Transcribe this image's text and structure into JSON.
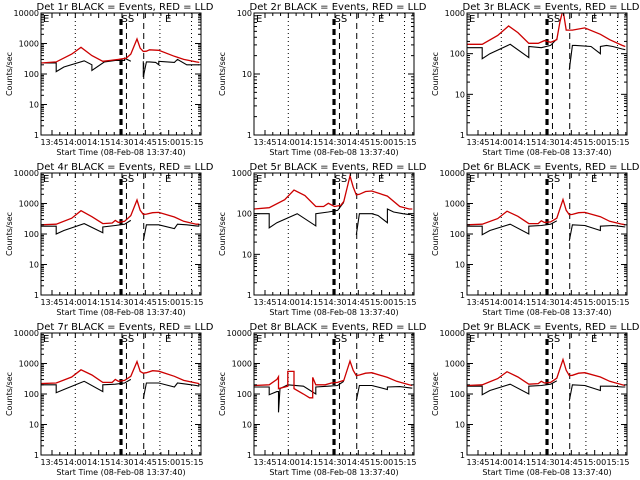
{
  "chart_data": [
    {
      "type": "line",
      "title": "Det 1r BLACK = Events, RED = LLD",
      "xlabel": "Start Time (08-Feb-08 13:37:40)",
      "ylabel": "Counts/sec",
      "yscale": "log",
      "ylim": [
        1,
        10000
      ],
      "ytick_labels": [
        "1",
        "10",
        "100",
        "1000",
        "10000"
      ],
      "xtick_labels": [
        "13:45",
        "14:00",
        "14:15",
        "14:30",
        "14:45",
        "15:00",
        "15:15"
      ],
      "xlim_minutes": [
        0,
        102
      ],
      "markers": [
        "E",
        "SS",
        "E"
      ],
      "series": [
        {
          "name": "Events",
          "color": "#000000",
          "x": [
            0,
            10,
            10,
            15,
            28,
            33,
            33,
            41,
            41,
            48,
            48,
            54,
            54,
            58,
            58,
            66,
            66,
            68,
            70,
            74,
            76,
            76,
            86,
            88,
            94,
            94,
            100,
            102
          ],
          "y": [
            230,
            230,
            120,
            170,
            270,
            200,
            130,
            250,
            250,
            280,
            280,
            280,
            330,
            260,
            0,
            260,
            80,
            250,
            250,
            240,
            200,
            260,
            240,
            300,
            200,
            200,
            200,
            200
          ]
        },
        {
          "name": "LLD",
          "color": "#cc0000",
          "x": [
            0,
            10,
            20,
            26,
            33,
            40,
            45,
            50,
            55,
            58,
            62,
            64,
            66,
            68,
            70,
            76,
            86,
            92,
            100,
            102
          ],
          "y": [
            230,
            250,
            450,
            750,
            400,
            260,
            280,
            300,
            330,
            450,
            1400,
            700,
            550,
            560,
            620,
            600,
            380,
            300,
            250,
            240
          ]
        }
      ]
    },
    {
      "type": "line",
      "title": "Det 2r BLACK = Events, RED = LLD",
      "xlabel": "Start Time (08-Feb-08 13:37:40)",
      "ylabel": "Counts/sec",
      "yscale": "log",
      "ylim": [
        1,
        100
      ],
      "ytick_labels": [
        "1",
        "10",
        "100"
      ],
      "xtick_labels": [
        "13:45",
        "14:00",
        "14:15",
        "14:30",
        "14:45",
        "15:00",
        "15:15"
      ],
      "xlim_minutes": [
        0,
        102
      ],
      "markers": [
        "E",
        "SS",
        "E"
      ],
      "series": []
    },
    {
      "type": "line",
      "title": "Det 3r BLACK = Events, RED = LLD",
      "xlabel": "Start Time (08-Feb-08 13:37:40)",
      "ylabel": "Counts/sec",
      "yscale": "log",
      "ylim": [
        1,
        1000
      ],
      "ytick_labels": [
        "1",
        "10",
        "100",
        "1000"
      ],
      "xtick_labels": [
        "13:45",
        "14:00",
        "14:15",
        "14:30",
        "14:45",
        "15:00",
        "15:15"
      ],
      "xlim_minutes": [
        0,
        102
      ],
      "markers": [
        "E",
        "SS",
        "E"
      ],
      "series": [
        {
          "name": "Events",
          "color": "#000000",
          "x": [
            0,
            10,
            10,
            15,
            28,
            40,
            40,
            48,
            48,
            54,
            54,
            58,
            58,
            66,
            66,
            68,
            70,
            80,
            86,
            86,
            90,
            94,
            100,
            102
          ],
          "y": [
            140,
            140,
            75,
            100,
            170,
            80,
            150,
            140,
            140,
            160,
            160,
            230,
            0,
            0,
            40,
            160,
            160,
            150,
            100,
            150,
            160,
            150,
            130,
            125
          ]
        },
        {
          "name": "LLD",
          "color": "#cc0000",
          "x": [
            0,
            10,
            20,
            27,
            33,
            40,
            46,
            50,
            54,
            58,
            60,
            62,
            64,
            68,
            76,
            86,
            92,
            100,
            102
          ],
          "y": [
            170,
            170,
            280,
            480,
            330,
            180,
            180,
            210,
            190,
            220,
            600,
            1200,
            380,
            380,
            430,
            300,
            220,
            160,
            150
          ]
        }
      ]
    },
    {
      "type": "line",
      "title": "Det 4r BLACK = Events, RED = LLD",
      "xlabel": "Start Time (08-Feb-08 13:37:40)",
      "ylabel": "Counts/sec",
      "yscale": "log",
      "ylim": [
        1,
        10000
      ],
      "ytick_labels": [
        "1",
        "10",
        "100",
        "1000",
        "10000"
      ],
      "xtick_labels": [
        "13:45",
        "14:00",
        "14:15",
        "14:30",
        "14:45",
        "15:00",
        "15:15"
      ],
      "xlim_minutes": [
        0,
        102
      ],
      "markers": [
        "E",
        "SS",
        "E"
      ],
      "series": [
        {
          "name": "Events",
          "color": "#000000",
          "x": [
            0,
            10,
            10,
            15,
            28,
            40,
            40,
            48,
            48,
            54,
            54,
            58,
            58,
            66,
            66,
            68,
            76,
            86,
            88,
            94,
            94,
            100,
            102
          ],
          "y": [
            180,
            180,
            100,
            130,
            220,
            110,
            170,
            190,
            190,
            210,
            210,
            280,
            0,
            0,
            60,
            200,
            200,
            150,
            210,
            200,
            200,
            185,
            180
          ]
        },
        {
          "name": "LLD",
          "color": "#cc0000",
          "x": [
            0,
            10,
            20,
            26,
            33,
            40,
            46,
            48,
            50,
            54,
            58,
            62,
            64,
            66,
            68,
            72,
            76,
            86,
            92,
            100,
            102
          ],
          "y": [
            200,
            210,
            330,
            580,
            370,
            220,
            230,
            280,
            240,
            260,
            400,
            1300,
            600,
            440,
            450,
            500,
            510,
            360,
            260,
            210,
            210
          ]
        }
      ]
    },
    {
      "type": "line",
      "title": "Det 5r BLACK = Events, RED = LLD",
      "xlabel": "Start Time (08-Feb-08 13:37:40)",
      "ylabel": "Counts/sec",
      "yscale": "log",
      "ylim": [
        1,
        1000
      ],
      "ytick_labels": [
        "1",
        "10",
        "100",
        "1000"
      ],
      "xtick_labels": [
        "13:45",
        "14:00",
        "14:15",
        "14:30",
        "14:45",
        "15:00",
        "15:15"
      ],
      "xlim_minutes": [
        0,
        102
      ],
      "markers": [
        "E",
        "SS",
        "E"
      ],
      "series": [
        {
          "name": "Events",
          "color": "#000000",
          "x": [
            0,
            10,
            10,
            15,
            28,
            40,
            40,
            48,
            48,
            54,
            54,
            58,
            58,
            66,
            66,
            68,
            76,
            80,
            86,
            86,
            90,
            96,
            100,
            102
          ],
          "y": [
            100,
            100,
            45,
            60,
            100,
            50,
            100,
            110,
            110,
            120,
            120,
            190,
            0,
            0,
            30,
            100,
            100,
            90,
            60,
            130,
            110,
            100,
            95,
            100
          ]
        },
        {
          "name": "LLD",
          "color": "#cc0000",
          "x": [
            0,
            10,
            20,
            26,
            33,
            40,
            45,
            48,
            52,
            56,
            58,
            62,
            64,
            66,
            68,
            72,
            76,
            86,
            94,
            100,
            102
          ],
          "y": [
            130,
            140,
            220,
            380,
            280,
            150,
            150,
            180,
            150,
            160,
            200,
            850,
            450,
            290,
            300,
            350,
            360,
            270,
            150,
            130,
            130
          ]
        }
      ]
    },
    {
      "type": "line",
      "title": "Det 6r BLACK = Events, RED = LLD",
      "xlabel": "Start Time (08-Feb-08 13:37:40)",
      "ylabel": "Counts/sec",
      "yscale": "log",
      "ylim": [
        1,
        10000
      ],
      "ytick_labels": [
        "1",
        "10",
        "100",
        "1000",
        "10000"
      ],
      "xtick_labels": [
        "13:45",
        "14:00",
        "14:15",
        "14:30",
        "14:45",
        "15:00",
        "15:15"
      ],
      "xlim_minutes": [
        0,
        102
      ],
      "markers": [
        "E",
        "SS",
        "E"
      ],
      "series": [
        {
          "name": "Events",
          "color": "#000000",
          "x": [
            0,
            10,
            10,
            15,
            28,
            40,
            40,
            48,
            48,
            54,
            54,
            58,
            58,
            66,
            66,
            68,
            76,
            86,
            86,
            94,
            100,
            102
          ],
          "y": [
            180,
            180,
            95,
            130,
            210,
            100,
            180,
            190,
            190,
            210,
            210,
            270,
            0,
            0,
            60,
            200,
            190,
            130,
            180,
            190,
            175,
            170
          ]
        },
        {
          "name": "LLD",
          "color": "#cc0000",
          "x": [
            0,
            10,
            20,
            26,
            33,
            40,
            46,
            48,
            50,
            54,
            58,
            62,
            64,
            66,
            68,
            72,
            76,
            86,
            92,
            100,
            102
          ],
          "y": [
            200,
            210,
            320,
            560,
            380,
            220,
            220,
            270,
            240,
            250,
            330,
            1350,
            600,
            430,
            440,
            500,
            510,
            370,
            260,
            210,
            200
          ]
        }
      ]
    },
    {
      "type": "line",
      "title": "Det 7r BLACK = Events, RED = LLD",
      "xlabel": "Start Time (08-Feb-08 13:37:40)",
      "ylabel": "Counts/sec",
      "yscale": "log",
      "ylim": [
        1,
        10000
      ],
      "ytick_labels": [
        "1",
        "10",
        "100",
        "1000",
        "10000"
      ],
      "xtick_labels": [
        "13:45",
        "14:00",
        "14:15",
        "14:30",
        "14:45",
        "15:00",
        "15:15"
      ],
      "xlim_minutes": [
        0,
        102
      ],
      "markers": [
        "E",
        "SS",
        "E"
      ],
      "series": [
        {
          "name": "Events",
          "color": "#000000",
          "x": [
            0,
            10,
            10,
            15,
            28,
            40,
            40,
            48,
            48,
            54,
            54,
            58,
            58,
            66,
            66,
            68,
            76,
            86,
            88,
            94,
            100,
            102
          ],
          "y": [
            200,
            200,
            110,
            140,
            260,
            120,
            200,
            210,
            210,
            230,
            230,
            300,
            0,
            0,
            70,
            230,
            230,
            170,
            230,
            210,
            190,
            180
          ]
        },
        {
          "name": "LLD",
          "color": "#cc0000",
          "x": [
            0,
            10,
            20,
            26,
            33,
            40,
            46,
            48,
            50,
            54,
            58,
            62,
            64,
            66,
            68,
            72,
            76,
            86,
            92,
            100,
            102
          ],
          "y": [
            220,
            230,
            360,
            620,
            420,
            240,
            240,
            300,
            260,
            280,
            380,
            1150,
            550,
            480,
            500,
            580,
            560,
            380,
            280,
            230,
            220
          ]
        }
      ]
    },
    {
      "type": "line",
      "title": "Det 8r BLACK = Events, RED = LLD",
      "xlabel": "Start Time (08-Feb-08 13:37:40)",
      "ylabel": "Counts/sec",
      "yscale": "log",
      "ylim": [
        1,
        10000
      ],
      "ytick_labels": [
        "1",
        "10",
        "100",
        "1000",
        "10000"
      ],
      "xtick_labels": [
        "13:45",
        "14:00",
        "14:15",
        "14:30",
        "14:45",
        "15:00",
        "15:15"
      ],
      "xlim_minutes": [
        0,
        102
      ],
      "markers": [
        "E",
        "SS",
        "E"
      ],
      "series": [
        {
          "name": "Events",
          "color": "#000000",
          "x": [
            0,
            10,
            10,
            15,
            16,
            16,
            17,
            22,
            32,
            40,
            40,
            48,
            48,
            54,
            54,
            58,
            58,
            66,
            66,
            68,
            76,
            86,
            86,
            94,
            100,
            102
          ],
          "y": [
            170,
            170,
            95,
            120,
            120,
            25,
            150,
            200,
            180,
            100,
            170,
            180,
            180,
            190,
            190,
            260,
            0,
            0,
            60,
            190,
            190,
            140,
            170,
            175,
            160,
            155
          ]
        },
        {
          "name": "LLD",
          "color": "#cc0000",
          "x": [
            0,
            10,
            15,
            16,
            16,
            22,
            22,
            26,
            26,
            32,
            36,
            38,
            38,
            40,
            46,
            50,
            54,
            58,
            62,
            64,
            66,
            68,
            72,
            76,
            86,
            92,
            100,
            102
          ],
          "y": [
            190,
            200,
            300,
            370,
            150,
            180,
            550,
            550,
            150,
            100,
            75,
            75,
            350,
            200,
            200,
            230,
            240,
            280,
            1200,
            600,
            400,
            420,
            480,
            500,
            350,
            260,
            200,
            190
          ]
        }
      ]
    },
    {
      "type": "line",
      "title": "Det 9r BLACK = Events, RED = LLD",
      "xlabel": "Start Time (08-Feb-08 13:37:40)",
      "ylabel": "Counts/sec",
      "yscale": "log",
      "ylim": [
        1,
        10000
      ],
      "ytick_labels": [
        "1",
        "10",
        "100",
        "1000",
        "10000"
      ],
      "xtick_labels": [
        "13:45",
        "14:00",
        "14:15",
        "14:30",
        "14:45",
        "15:00",
        "15:15"
      ],
      "xlim_minutes": [
        0,
        102
      ],
      "markers": [
        "E",
        "SS",
        "E"
      ],
      "series": [
        {
          "name": "Events",
          "color": "#000000",
          "x": [
            0,
            10,
            10,
            15,
            28,
            40,
            40,
            48,
            48,
            54,
            54,
            58,
            58,
            66,
            66,
            68,
            76,
            86,
            86,
            94,
            100,
            102
          ],
          "y": [
            180,
            180,
            95,
            130,
            210,
            100,
            180,
            190,
            190,
            210,
            210,
            270,
            0,
            0,
            60,
            200,
            190,
            130,
            180,
            180,
            170,
            170
          ]
        },
        {
          "name": "LLD",
          "color": "#cc0000",
          "x": [
            0,
            10,
            20,
            26,
            33,
            40,
            46,
            48,
            50,
            54,
            58,
            62,
            64,
            66,
            68,
            72,
            76,
            86,
            92,
            100,
            102
          ],
          "y": [
            190,
            200,
            320,
            540,
            360,
            210,
            220,
            260,
            230,
            240,
            330,
            1350,
            600,
            400,
            410,
            480,
            500,
            360,
            260,
            200,
            190
          ]
        }
      ]
    }
  ]
}
